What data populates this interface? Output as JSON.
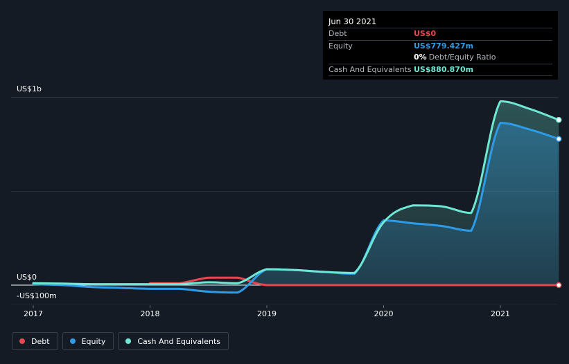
{
  "tooltip": {
    "date": "Jun 30 2021",
    "rows": [
      {
        "label": "Debt",
        "value": "US$0"
      },
      {
        "label": "Equity",
        "value": "US$779.427m"
      },
      {
        "label": "",
        "value": "0%",
        "extra": "Debt/Equity Ratio"
      },
      {
        "label": "Cash And Equivalents",
        "value": "US$880.870m"
      }
    ]
  },
  "colors": {
    "debt": "#e8474f",
    "equity": "#2e9be6",
    "cash": "#6ee7d4",
    "background": "#151b24",
    "grid": "#2e3540"
  },
  "chart_data": {
    "type": "area",
    "title": "",
    "xlabel": "",
    "ylabel": "",
    "ylim": [
      -100,
      1000
    ],
    "x_range": [
      2016.8,
      2021.5
    ],
    "y_tick_labels": [
      {
        "value": 1000,
        "label": "US$1b"
      },
      {
        "value": 0,
        "label": "US$0"
      },
      {
        "value": -100,
        "label": "-US$100m"
      }
    ],
    "x_ticks": [
      {
        "value": 2017,
        "label": "2017"
      },
      {
        "value": 2018,
        "label": "2018"
      },
      {
        "value": 2019,
        "label": "2019"
      },
      {
        "value": 2020,
        "label": "2020"
      },
      {
        "value": 2021,
        "label": "2021"
      }
    ],
    "series": [
      {
        "name": "Debt",
        "key": "debt",
        "points": [
          [
            2018.0,
            10
          ],
          [
            2018.25,
            10
          ],
          [
            2018.5,
            40
          ],
          [
            2018.75,
            40
          ],
          [
            2019.0,
            0
          ],
          [
            2019.5,
            0
          ],
          [
            2020.0,
            0
          ],
          [
            2020.5,
            0
          ],
          [
            2021.0,
            0
          ],
          [
            2021.5,
            0
          ]
        ]
      },
      {
        "name": "Equity",
        "key": "equity",
        "points": [
          [
            2017.0,
            5
          ],
          [
            2017.25,
            0
          ],
          [
            2017.5,
            -10
          ],
          [
            2017.75,
            -15
          ],
          [
            2018.0,
            -20
          ],
          [
            2018.25,
            -20
          ],
          [
            2018.5,
            -35
          ],
          [
            2018.75,
            -40
          ],
          [
            2019.0,
            85
          ],
          [
            2019.25,
            80
          ],
          [
            2019.5,
            70
          ],
          [
            2019.75,
            60
          ],
          [
            2020.0,
            345
          ],
          [
            2020.25,
            330
          ],
          [
            2020.5,
            315
          ],
          [
            2020.75,
            290
          ],
          [
            2021.0,
            865
          ],
          [
            2021.25,
            830
          ],
          [
            2021.5,
            779.427
          ]
        ]
      },
      {
        "name": "Cash And Equivalents",
        "key": "cash",
        "points": [
          [
            2017.0,
            10
          ],
          [
            2017.25,
            8
          ],
          [
            2017.5,
            5
          ],
          [
            2017.75,
            5
          ],
          [
            2018.0,
            5
          ],
          [
            2018.25,
            5
          ],
          [
            2018.5,
            15
          ],
          [
            2018.75,
            10
          ],
          [
            2019.0,
            85
          ],
          [
            2019.25,
            80
          ],
          [
            2019.5,
            70
          ],
          [
            2019.75,
            65
          ],
          [
            2020.0,
            335
          ],
          [
            2020.25,
            425
          ],
          [
            2020.5,
            420
          ],
          [
            2020.75,
            385
          ],
          [
            2021.0,
            980
          ],
          [
            2021.25,
            940
          ],
          [
            2021.5,
            880.87
          ]
        ]
      }
    ]
  },
  "legend": {
    "items": [
      {
        "key": "debt",
        "label": "Debt"
      },
      {
        "key": "equity",
        "label": "Equity"
      },
      {
        "key": "cash",
        "label": "Cash And Equivalents"
      }
    ]
  }
}
